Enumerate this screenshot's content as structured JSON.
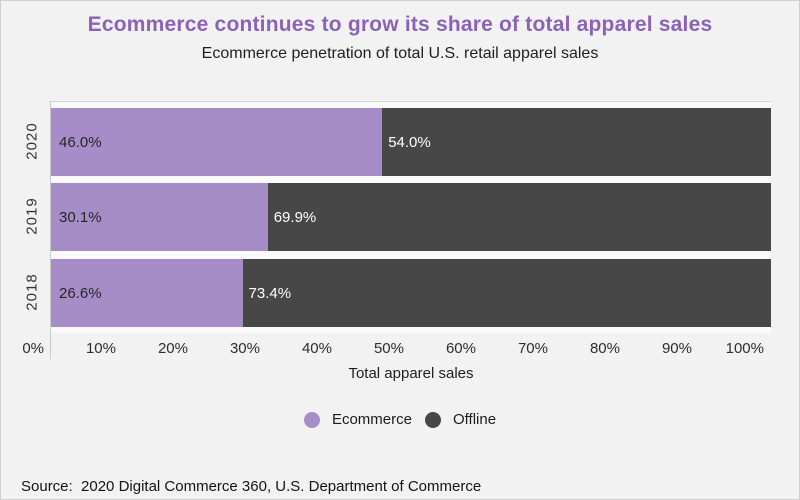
{
  "title": "Ecommerce continues to grow its share of total apparel sales",
  "subtitle": "Ecommerce penetration of total U.S. retail apparel sales",
  "source_line": "Source:  2020 Digital Commerce 360, U.S. Department of Commerce",
  "colors": {
    "ecommerce": "#a78dc8",
    "offline": "#474747",
    "title": "#8a63b8",
    "background": "#f2f2f2",
    "plot_background": "#fafafa",
    "axis_line": "#c9c9c9",
    "label_on_ecommerce": "#262626",
    "label_on_offline": "#ffffff"
  },
  "chart_data": {
    "type": "bar",
    "orientation": "horizontal",
    "stacked": true,
    "categories": [
      "2020",
      "2019",
      "2018"
    ],
    "series": [
      {
        "name": "Ecommerce",
        "values": [
          46.0,
          30.1,
          26.6
        ],
        "color": "#a78dc8"
      },
      {
        "name": "Offline",
        "values": [
          54.0,
          69.9,
          73.4
        ],
        "color": "#474747"
      }
    ],
    "bar_labels": [
      [
        "46.0%",
        "54.0%"
      ],
      [
        "30.1%",
        "69.9%"
      ],
      [
        "26.6%",
        "73.4%"
      ]
    ],
    "xlabel": "Total apparel sales",
    "ylabel": "",
    "x_ticks": [
      "0%",
      "10%",
      "20%",
      "30%",
      "40%",
      "50%",
      "60%",
      "70%",
      "80%",
      "90%",
      "100%"
    ],
    "xlim": [
      0,
      100
    ],
    "grid": false,
    "legend": [
      "Ecommerce",
      "Offline"
    ],
    "legend_position": "bottom"
  }
}
